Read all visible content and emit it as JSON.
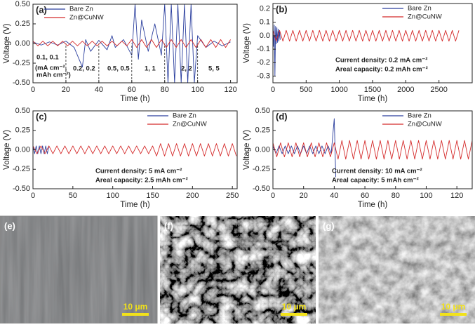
{
  "chart_data": [
    {
      "type": "line",
      "panel_label": "(a)",
      "x_label": "Time (h)",
      "y_label": "Voltage (V)",
      "xlim": [
        0,
        124
      ],
      "xticks": [
        0,
        20,
        40,
        60,
        80,
        100,
        120
      ],
      "ylim": [
        -0.5,
        0.5
      ],
      "yticks": [
        {
          "value": -0.5,
          "label": "-0.50"
        },
        -0.25,
        {
          "value": 0,
          "label": "0.00"
        },
        0.25,
        {
          "value": 0.5,
          "label": "0.50"
        }
      ],
      "legend": "upper left",
      "dividers": [
        20,
        40,
        60,
        80,
        100
      ],
      "annotations": [
        "0.1, 0.1",
        "(mA cm⁻²,",
        "mAh cm⁻²)",
        "0.2, 0.2",
        "0.5, 0.5",
        "1, 1",
        "2, 2",
        "5, 5"
      ],
      "series": [
        {
          "name": "Bare Zn",
          "color": "#2b3f9e",
          "x": [
            0,
            5,
            10,
            15,
            20,
            25,
            30,
            32,
            35,
            40,
            45,
            48,
            50,
            55,
            60,
            62,
            64,
            66,
            70,
            74,
            78,
            80,
            82,
            84,
            86,
            88,
            90,
            92,
            94,
            96,
            98,
            100,
            105,
            110,
            115,
            120
          ],
          "values": [
            0.02,
            -0.02,
            0.02,
            -0.02,
            0.03,
            -0.05,
            -0.3,
            0.05,
            -0.1,
            0.04,
            -0.08,
            0.1,
            -0.05,
            0.05,
            -0.15,
            0.5,
            -0.2,
            0.3,
            -0.1,
            0.25,
            -0.15,
            0.5,
            -0.5,
            0.5,
            -0.5,
            0.5,
            -0.5,
            0.5,
            -0.5,
            0.5,
            -0.5,
            0.1,
            -0.05,
            0.03,
            -0.03,
            0.02
          ]
        },
        {
          "name": "Zn@CuNW",
          "color": "#d42a2a",
          "x": [
            0,
            3,
            6,
            9,
            12,
            15,
            18,
            21,
            24,
            27,
            30,
            33,
            36,
            39,
            42,
            45,
            48,
            51,
            54,
            57,
            60,
            63,
            66,
            69,
            72,
            75,
            78,
            81,
            84,
            87,
            90,
            93,
            96,
            99,
            102,
            105,
            108,
            111,
            114,
            117,
            120
          ],
          "values": [
            0.03,
            -0.03,
            0.03,
            -0.03,
            0.03,
            -0.03,
            0.03,
            -0.03,
            0.03,
            -0.03,
            0.03,
            -0.03,
            0.03,
            -0.03,
            0.03,
            -0.03,
            0.03,
            -0.03,
            0.03,
            -0.03,
            0.05,
            -0.05,
            0.05,
            -0.05,
            0.05,
            -0.05,
            0.05,
            -0.05,
            0.05,
            -0.05,
            0.05,
            -0.05,
            0.05,
            -0.05,
            0.05,
            -0.05,
            0.05,
            -0.05,
            0.05,
            -0.05,
            0.05
          ]
        }
      ]
    },
    {
      "type": "line",
      "panel_label": "(b)",
      "x_label": "Time (h)",
      "y_label": "Voltage (V)",
      "xlim": [
        0,
        3000
      ],
      "xticks": [
        0,
        500,
        1000,
        1500,
        2000,
        2500
      ],
      "ylim": [
        -0.35,
        0.24
      ],
      "yticks": [
        -0.3,
        -0.2,
        -0.1,
        {
          "value": 0,
          "label": "0.0"
        },
        0.1,
        0.2
      ],
      "legend": "upper right",
      "annotations": [
        "Current density: 0.2 mA cm⁻²",
        "Areal capacity: 0.2 mAh cm⁻²"
      ],
      "series": [
        {
          "name": "Bare Zn",
          "color": "#2b3f9e",
          "x": [
            0,
            10,
            20,
            30,
            40,
            50,
            60,
            70,
            80,
            90,
            100,
            110
          ],
          "values": [
            0.05,
            -0.08,
            0.08,
            -0.3,
            0.07,
            -0.06,
            0.06,
            -0.05,
            0.05,
            -0.04,
            0.04,
            -0.03
          ]
        },
        {
          "name": "Zn@CuNW",
          "color": "#d42a2a",
          "x": [
            0,
            50,
            100,
            150,
            200,
            250,
            300,
            350,
            400,
            450,
            500,
            550,
            600,
            650,
            700,
            750,
            800,
            850,
            900,
            950,
            1000,
            1050,
            1100,
            1150,
            1200,
            1250,
            1300,
            1350,
            1400,
            1450,
            1500,
            1550,
            1600,
            1650,
            1700,
            1750,
            1800,
            1850,
            1900,
            1950,
            2000,
            2050,
            2100,
            2150,
            2200,
            2250,
            2300,
            2350,
            2400,
            2450,
            2500,
            2550,
            2600,
            2650,
            2700,
            2750,
            2800
          ],
          "values": [
            0.04,
            -0.04,
            0.04,
            -0.04,
            0.04,
            -0.04,
            0.04,
            -0.04,
            0.04,
            -0.04,
            0.04,
            -0.04,
            0.04,
            -0.04,
            0.04,
            -0.04,
            0.04,
            -0.04,
            0.04,
            -0.04,
            0.04,
            -0.04,
            0.04,
            -0.04,
            0.04,
            -0.04,
            0.04,
            -0.04,
            0.04,
            -0.04,
            0.04,
            -0.04,
            0.04,
            -0.04,
            0.04,
            -0.04,
            0.04,
            -0.04,
            0.04,
            -0.04,
            0.04,
            -0.04,
            0.04,
            -0.04,
            0.04,
            -0.04,
            0.04,
            -0.04,
            0.04,
            -0.04,
            0.04,
            -0.04,
            0.04,
            -0.04,
            0.04,
            -0.04,
            0.04
          ]
        }
      ]
    },
    {
      "type": "line",
      "panel_label": "(c)",
      "x_label": "Time (h)",
      "y_label": "Voltage (V)",
      "xlim": [
        0,
        256
      ],
      "xticks": [
        0,
        50,
        100,
        150,
        200,
        250
      ],
      "ylim": [
        -0.5,
        0.5
      ],
      "yticks": [
        {
          "value": -0.5,
          "label": "-0.50"
        },
        -0.25,
        {
          "value": 0,
          "label": "0.00"
        },
        0.25,
        {
          "value": 0.5,
          "label": "0.50"
        }
      ],
      "legend": "upper right",
      "annotations": [
        "Current density: 5 mA cm⁻²",
        "Areal capacity: 2.5 mAh cm⁻²"
      ],
      "series": [
        {
          "name": "Bare Zn",
          "color": "#2b3f9e",
          "x": [
            0,
            2,
            4,
            6,
            8,
            10,
            12,
            14,
            16,
            18,
            20
          ],
          "values": [
            0.05,
            -0.05,
            0.05,
            -0.05,
            0.05,
            -0.05,
            0.05,
            -0.05,
            0.05,
            -0.05,
            0.05
          ]
        },
        {
          "name": "Zn@CuNW",
          "color": "#d42a2a",
          "x": [
            0,
            5,
            10,
            15,
            20,
            25,
            30,
            35,
            40,
            45,
            50,
            55,
            60,
            65,
            70,
            75,
            80,
            85,
            90,
            95,
            100,
            105,
            110,
            115,
            120,
            125,
            130,
            135,
            140,
            145,
            150,
            155,
            160,
            165,
            170,
            175,
            180,
            185,
            190,
            195,
            200,
            205,
            210,
            215,
            220,
            225,
            230,
            235,
            240,
            245,
            250,
            255
          ],
          "values": [
            0.05,
            -0.05,
            0.05,
            -0.05,
            0.05,
            -0.05,
            0.05,
            -0.05,
            0.05,
            -0.05,
            0.05,
            -0.05,
            0.05,
            -0.05,
            0.05,
            -0.05,
            0.05,
            -0.05,
            0.05,
            -0.05,
            0.05,
            -0.05,
            0.05,
            -0.05,
            0.05,
            -0.05,
            0.05,
            -0.05,
            0.05,
            -0.05,
            0.05,
            -0.08,
            0.08,
            -0.08,
            0.08,
            -0.08,
            0.08,
            -0.08,
            0.08,
            -0.08,
            0.08,
            -0.08,
            0.08,
            -0.08,
            0.08,
            -0.08,
            0.08,
            -0.08,
            0.08,
            -0.08,
            0.08,
            -0.08
          ]
        }
      ]
    },
    {
      "type": "line",
      "panel_label": "(d)",
      "x_label": "Time (h)",
      "y_label": "Voltage (V)",
      "xlim": [
        0,
        130
      ],
      "xticks": [
        0,
        20,
        40,
        60,
        80,
        100,
        120
      ],
      "ylim": [
        -0.5,
        0.5
      ],
      "yticks": [
        {
          "value": -0.5,
          "label": "-0.50"
        },
        -0.25,
        {
          "value": 0,
          "label": "0.00"
        },
        0.25,
        {
          "value": 0.5,
          "label": "0.50"
        }
      ],
      "legend": "upper right",
      "annotations": [
        "Current density: 10 mA cm⁻²",
        "Areal capacity: 5 mAh cm⁻²"
      ],
      "series": [
        {
          "name": "Bare Zn",
          "color": "#2b3f9e",
          "x": [
            0,
            2,
            4,
            6,
            8,
            10,
            12,
            14,
            16,
            18,
            20,
            22,
            24,
            26,
            28,
            30,
            32,
            34,
            36,
            38,
            40,
            41
          ],
          "values": [
            0.05,
            -0.05,
            0.05,
            -0.05,
            0.05,
            -0.05,
            0.05,
            -0.05,
            0.05,
            -0.05,
            0.05,
            -0.05,
            0.05,
            -0.05,
            0.05,
            -0.05,
            0.05,
            -0.05,
            0.05,
            -0.05,
            0.4,
            -0.35
          ]
        },
        {
          "name": "Zn@CuNW",
          "color": "#d42a2a",
          "x": [
            0,
            2.5,
            5,
            7.5,
            10,
            12.5,
            15,
            17.5,
            20,
            22.5,
            25,
            27.5,
            30,
            32.5,
            35,
            37.5,
            40,
            42.5,
            45,
            47.5,
            50,
            52.5,
            55,
            57.5,
            60,
            62.5,
            65,
            67.5,
            70,
            72.5,
            75,
            77.5,
            80,
            82.5,
            85,
            87.5,
            90,
            92.5,
            95,
            97.5,
            100,
            102.5,
            105,
            107.5,
            110,
            112.5,
            115,
            117.5,
            120,
            122.5,
            125,
            127.5,
            130
          ],
          "values": [
            0.09,
            -0.09,
            0.09,
            -0.09,
            0.09,
            -0.09,
            0.09,
            -0.09,
            0.09,
            -0.09,
            0.09,
            -0.09,
            0.09,
            -0.09,
            0.09,
            -0.09,
            0.09,
            -0.12,
            0.12,
            -0.12,
            0.12,
            -0.12,
            0.12,
            -0.12,
            0.12,
            -0.12,
            0.12,
            -0.12,
            0.12,
            -0.12,
            0.12,
            -0.12,
            0.12,
            -0.12,
            0.12,
            -0.12,
            0.12,
            -0.12,
            0.12,
            -0.12,
            0.12,
            -0.12,
            0.12,
            -0.12,
            0.12,
            -0.12,
            0.12,
            -0.12,
            0.12,
            -0.12,
            0.12,
            -0.12,
            0.12
          ]
        }
      ]
    }
  ],
  "images": [
    {
      "label": "(e)",
      "scale_bar": "10 μm"
    },
    {
      "label": "(f)",
      "scale_bar": "10 μm"
    },
    {
      "label": "(g)",
      "scale_bar": "10 μm"
    }
  ]
}
